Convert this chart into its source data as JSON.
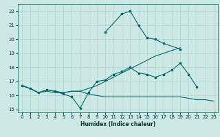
{
  "xlabel": "Humidex (Indice chaleur)",
  "xlim": [
    -0.5,
    23.5
  ],
  "ylim": [
    14.8,
    22.5
  ],
  "yticks": [
    15,
    16,
    17,
    18,
    19,
    20,
    21,
    22
  ],
  "xticks": [
    0,
    1,
    2,
    3,
    4,
    5,
    6,
    7,
    8,
    9,
    10,
    11,
    12,
    13,
    14,
    15,
    16,
    17,
    18,
    19,
    20,
    21,
    22,
    23
  ],
  "bg_color": "#cce9e5",
  "grid_color": "#aed4cf",
  "line_color": "#006868",
  "line1": {
    "x": [
      0,
      1,
      2,
      3,
      4,
      5,
      6,
      7,
      8,
      9,
      10,
      11,
      12,
      13,
      14,
      15,
      16,
      17,
      18,
      19,
      20,
      21
    ],
    "y": [
      16.7,
      16.5,
      16.2,
      16.4,
      16.3,
      16.1,
      15.9,
      15.1,
      16.2,
      17.0,
      17.1,
      17.5,
      17.7,
      18.0,
      17.6,
      17.5,
      17.3,
      17.5,
      17.8,
      18.3,
      17.5,
      16.6
    ]
  },
  "line2": {
    "x": [
      0,
      1,
      2,
      3,
      4,
      5,
      6,
      7,
      8,
      9,
      10,
      11,
      12,
      13,
      14,
      15,
      16,
      17,
      18,
      19,
      20,
      21,
      22,
      23
    ],
    "y": [
      16.7,
      16.5,
      16.2,
      16.3,
      16.2,
      16.2,
      16.3,
      16.3,
      16.1,
      16.0,
      15.9,
      15.9,
      15.9,
      15.9,
      15.9,
      15.9,
      15.9,
      15.9,
      15.9,
      15.9,
      15.8,
      15.7,
      15.7,
      15.6
    ]
  },
  "line3": {
    "x": [
      0,
      1,
      2,
      3,
      4,
      5,
      6,
      7,
      8,
      9,
      10,
      11,
      12,
      13,
      14,
      15,
      16,
      17,
      18,
      19
    ],
    "y": [
      16.7,
      16.5,
      16.2,
      16.4,
      16.3,
      16.2,
      16.3,
      16.3,
      16.5,
      16.7,
      17.0,
      17.3,
      17.6,
      17.9,
      18.2,
      18.5,
      18.8,
      19.0,
      19.2,
      19.4
    ]
  },
  "line4": {
    "x": [
      10,
      12,
      13,
      14,
      15,
      16,
      17,
      19
    ],
    "y": [
      20.5,
      21.8,
      22.0,
      21.0,
      20.1,
      20.0,
      19.7,
      19.3
    ]
  }
}
